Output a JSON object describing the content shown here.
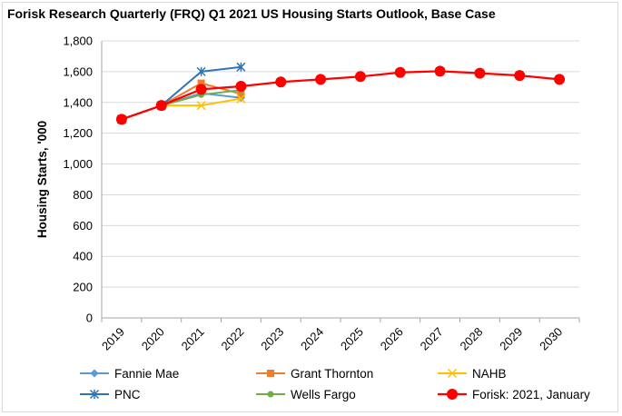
{
  "chart_data": {
    "type": "line",
    "title": "Forisk Research Quarterly (FRQ) Q1 2021 US Housing Starts Outlook, Base Case",
    "xlabel": "",
    "ylabel": "Housing Starts, '000",
    "categories": [
      "2019",
      "2020",
      "2021",
      "2022",
      "2023",
      "2024",
      "2025",
      "2026",
      "2027",
      "2028",
      "2029",
      "2030"
    ],
    "ylim": [
      0,
      1800
    ],
    "yticks": [
      0,
      200,
      400,
      600,
      800,
      1000,
      1200,
      1400,
      1600,
      1800
    ],
    "ytick_labels": [
      "0",
      "200",
      "400",
      "600",
      "800",
      "1,000",
      "1,200",
      "1,400",
      "1,600",
      "1,800"
    ],
    "grid": true,
    "legend_position": "bottom",
    "series": [
      {
        "name": "Fannie Mae",
        "color": "#5b9bd5",
        "marker": "diamond",
        "values": [
          1290,
          1380,
          1460,
          1430,
          null,
          null,
          null,
          null,
          null,
          null,
          null,
          null
        ]
      },
      {
        "name": "Grant Thornton",
        "color": "#ed7d31",
        "marker": "square",
        "values": [
          1290,
          1380,
          1525,
          1455,
          null,
          null,
          null,
          null,
          null,
          null,
          null,
          null
        ]
      },
      {
        "name": "NAHB",
        "color": "#ffc000",
        "marker": "x",
        "values": [
          1290,
          1380,
          1380,
          1425,
          null,
          null,
          null,
          null,
          null,
          null,
          null,
          null
        ]
      },
      {
        "name": "PNC",
        "color": "#2e75b6",
        "marker": "star",
        "values": [
          1290,
          1380,
          1600,
          1630,
          null,
          null,
          null,
          null,
          null,
          null,
          null,
          null
        ]
      },
      {
        "name": "Wells Fargo",
        "color": "#70ad47",
        "marker": "circle",
        "values": [
          1290,
          1380,
          1450,
          1480,
          null,
          null,
          null,
          null,
          null,
          null,
          null,
          null
        ]
      },
      {
        "name": "Forisk: 2021, January",
        "color": "#ff0000",
        "marker": "bigcircle",
        "values": [
          1290,
          1380,
          1485,
          1505,
          1533,
          1550,
          1568,
          1595,
          1603,
          1590,
          1575,
          1550
        ]
      }
    ]
  }
}
